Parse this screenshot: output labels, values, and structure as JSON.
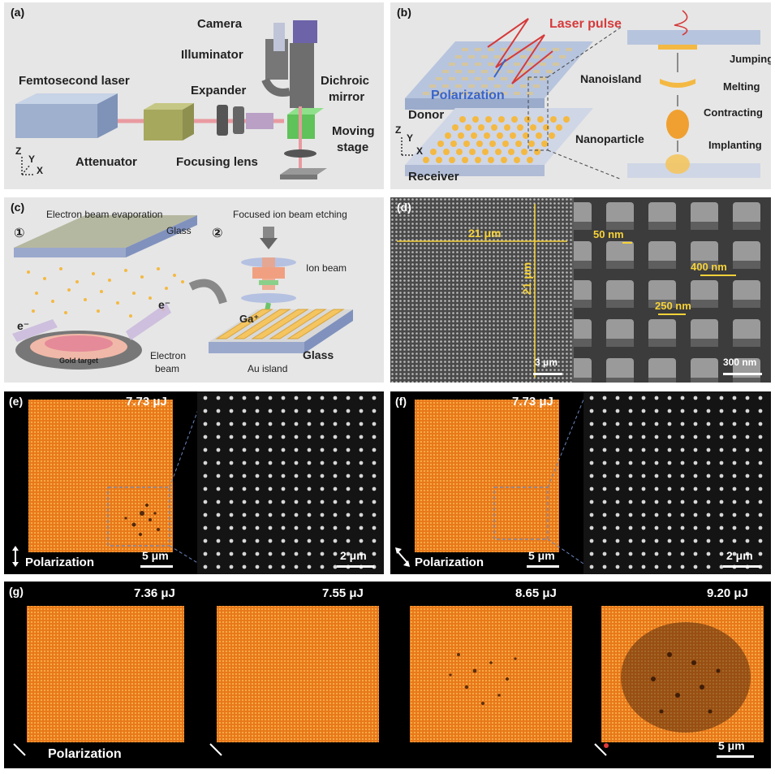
{
  "panels": {
    "a": {
      "label": "(a)",
      "femtosecond_laser": "Femtosecond laser",
      "camera": "Camera",
      "illuminator": "Illuminator",
      "expander": "Expander",
      "dichroic": "Dichroic",
      "mirror": "mirror",
      "moving": "Moving",
      "stage": "stage",
      "attenuator": "Attenuator",
      "focusing_lens": "Focusing lens",
      "axes": {
        "z": "Z",
        "y": "Y",
        "x": "X"
      }
    },
    "b": {
      "label": "(b)",
      "laser_pulse": "Laser pulse",
      "polarization": "Polarization",
      "donor": "Donor",
      "receiver": "Receiver",
      "nanoisland": "Nanoisland",
      "nanoparticle": "Nanoparticle",
      "jumping": "Jumping",
      "melting": "Melting",
      "contracting": "Contracting",
      "implanting": "Implanting",
      "axes": {
        "z": "Z",
        "y": "Y",
        "x": "X"
      }
    },
    "c": {
      "label": "(c)",
      "step1_num": "①",
      "step1": "Electron beam evaporation",
      "step2_num": "②",
      "step2": "Focused ion beam etching",
      "glass_top": "Glass",
      "ion_beam": "Ion beam",
      "ga": "Ga⁺",
      "glass_bottom": "Glass",
      "au_island": "Au island",
      "gold_target": "Gold target",
      "electron": "Electron",
      "beam": "beam",
      "e1": "e⁻",
      "e2": "e⁻"
    },
    "d": {
      "label": "(d)",
      "width": "21 μm",
      "height": "21 μm",
      "scale_left": "3 μm",
      "dim_50": "50 nm",
      "dim_400": "400 nm",
      "dim_250": "250 nm",
      "scale_right": "300 nm"
    },
    "e": {
      "label": "(e)",
      "energy": "7.73 μJ",
      "polarization": "Polarization",
      "scale_left": "5 μm",
      "scale_right": "2 μm"
    },
    "f": {
      "label": "(f)",
      "energy": "7.73 μJ",
      "polarization": "Polarization",
      "scale_left": "5 μm",
      "scale_right": "2 μm"
    },
    "g": {
      "label": "(g)",
      "energies": [
        "7.36 μJ",
        "7.55 μJ",
        "8.65 μJ",
        "9.20 μJ"
      ],
      "polarization": "Polarization",
      "scale": "5 μm"
    }
  },
  "colors": {
    "panel_gray": "#e6e6e6",
    "orange": "#f08a1c",
    "laser_red": "#d63a3a",
    "gold": "#f4b942",
    "glass_blue": "#a9b8d6",
    "dim_yellow": "#f6d23a"
  }
}
